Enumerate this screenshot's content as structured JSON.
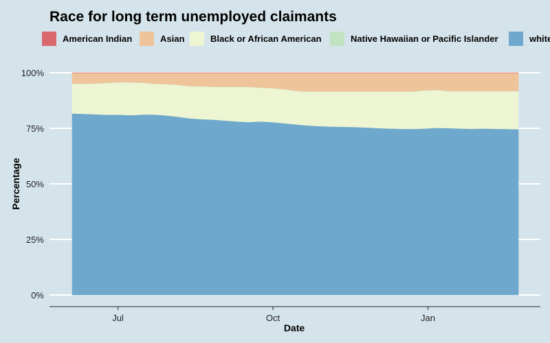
{
  "chart_data": {
    "type": "area",
    "stacked": true,
    "normalized": true,
    "title": "Race for long term unemployed claimants",
    "xlabel": "Date",
    "ylabel": "Percentage",
    "ylim": [
      0,
      1
    ],
    "yticks": [
      0,
      0.25,
      0.5,
      0.75,
      1.0
    ],
    "ytick_labels": [
      "0%",
      "25%",
      "50%",
      "75%",
      "100%"
    ],
    "xticks": [
      {
        "label": "Jul",
        "week_index": 3.9
      },
      {
        "label": "Oct",
        "week_index": 17.1
      },
      {
        "label": "Jan",
        "week_index": 30.3
      }
    ],
    "legend_position": "top",
    "weeks": 39,
    "series": [
      {
        "name": "white",
        "color": "#6fa8cd",
        "values": [
          0.817,
          0.815,
          0.813,
          0.811,
          0.811,
          0.809,
          0.812,
          0.812,
          0.808,
          0.802,
          0.795,
          0.791,
          0.789,
          0.785,
          0.781,
          0.778,
          0.781,
          0.778,
          0.773,
          0.768,
          0.763,
          0.76,
          0.758,
          0.757,
          0.756,
          0.754,
          0.751,
          0.749,
          0.748,
          0.747,
          0.749,
          0.752,
          0.751,
          0.749,
          0.748,
          0.749,
          0.748,
          0.747,
          0.746
        ]
      },
      {
        "name": "Black or African American",
        "color": "#eef5d2",
        "values": [
          0.133,
          0.135,
          0.138,
          0.143,
          0.146,
          0.147,
          0.143,
          0.138,
          0.14,
          0.143,
          0.144,
          0.147,
          0.147,
          0.151,
          0.155,
          0.158,
          0.152,
          0.152,
          0.153,
          0.15,
          0.152,
          0.155,
          0.157,
          0.158,
          0.159,
          0.161,
          0.164,
          0.166,
          0.167,
          0.168,
          0.171,
          0.17,
          0.166,
          0.168,
          0.169,
          0.168,
          0.169,
          0.17,
          0.171
        ]
      },
      {
        "name": "Native Hawaiian or Pacific Islander",
        "color": "#c2e3c2",
        "values": [
          0.001,
          0.001,
          0.001,
          0.001,
          0.001,
          0.001,
          0.001,
          0.001,
          0.001,
          0.001,
          0.001,
          0.001,
          0.001,
          0.001,
          0.001,
          0.001,
          0.001,
          0.001,
          0.001,
          0.001,
          0.001,
          0.001,
          0.001,
          0.001,
          0.001,
          0.001,
          0.001,
          0.001,
          0.001,
          0.001,
          0.001,
          0.001,
          0.001,
          0.001,
          0.001,
          0.001,
          0.001,
          0.001,
          0.001
        ]
      },
      {
        "name": "Asian",
        "color": "#efc49a",
        "values": [
          0.048,
          0.048,
          0.047,
          0.044,
          0.041,
          0.042,
          0.043,
          0.048,
          0.05,
          0.053,
          0.059,
          0.06,
          0.062,
          0.062,
          0.062,
          0.062,
          0.065,
          0.068,
          0.072,
          0.08,
          0.083,
          0.083,
          0.083,
          0.083,
          0.083,
          0.083,
          0.083,
          0.083,
          0.083,
          0.083,
          0.078,
          0.076,
          0.081,
          0.081,
          0.081,
          0.081,
          0.081,
          0.081,
          0.081
        ]
      },
      {
        "name": "American Indian",
        "color": "#d9696e",
        "values": [
          0.001,
          0.001,
          0.001,
          0.001,
          0.001,
          0.001,
          0.001,
          0.001,
          0.001,
          0.001,
          0.001,
          0.001,
          0.001,
          0.001,
          0.001,
          0.001,
          0.001,
          0.001,
          0.001,
          0.001,
          0.001,
          0.001,
          0.001,
          0.001,
          0.001,
          0.001,
          0.001,
          0.001,
          0.001,
          0.001,
          0.001,
          0.001,
          0.001,
          0.001,
          0.001,
          0.001,
          0.001,
          0.001,
          0.001
        ]
      }
    ],
    "legend": [
      {
        "name": "American Indian",
        "color": "#d9696e"
      },
      {
        "name": "Asian",
        "color": "#efc49a"
      },
      {
        "name": "Black or African American",
        "color": "#eef5d2"
      },
      {
        "name": "Native Hawaiian or Pacific Islander",
        "color": "#c2e3c2"
      },
      {
        "name": "white",
        "color": "#6fa8cd"
      }
    ]
  }
}
